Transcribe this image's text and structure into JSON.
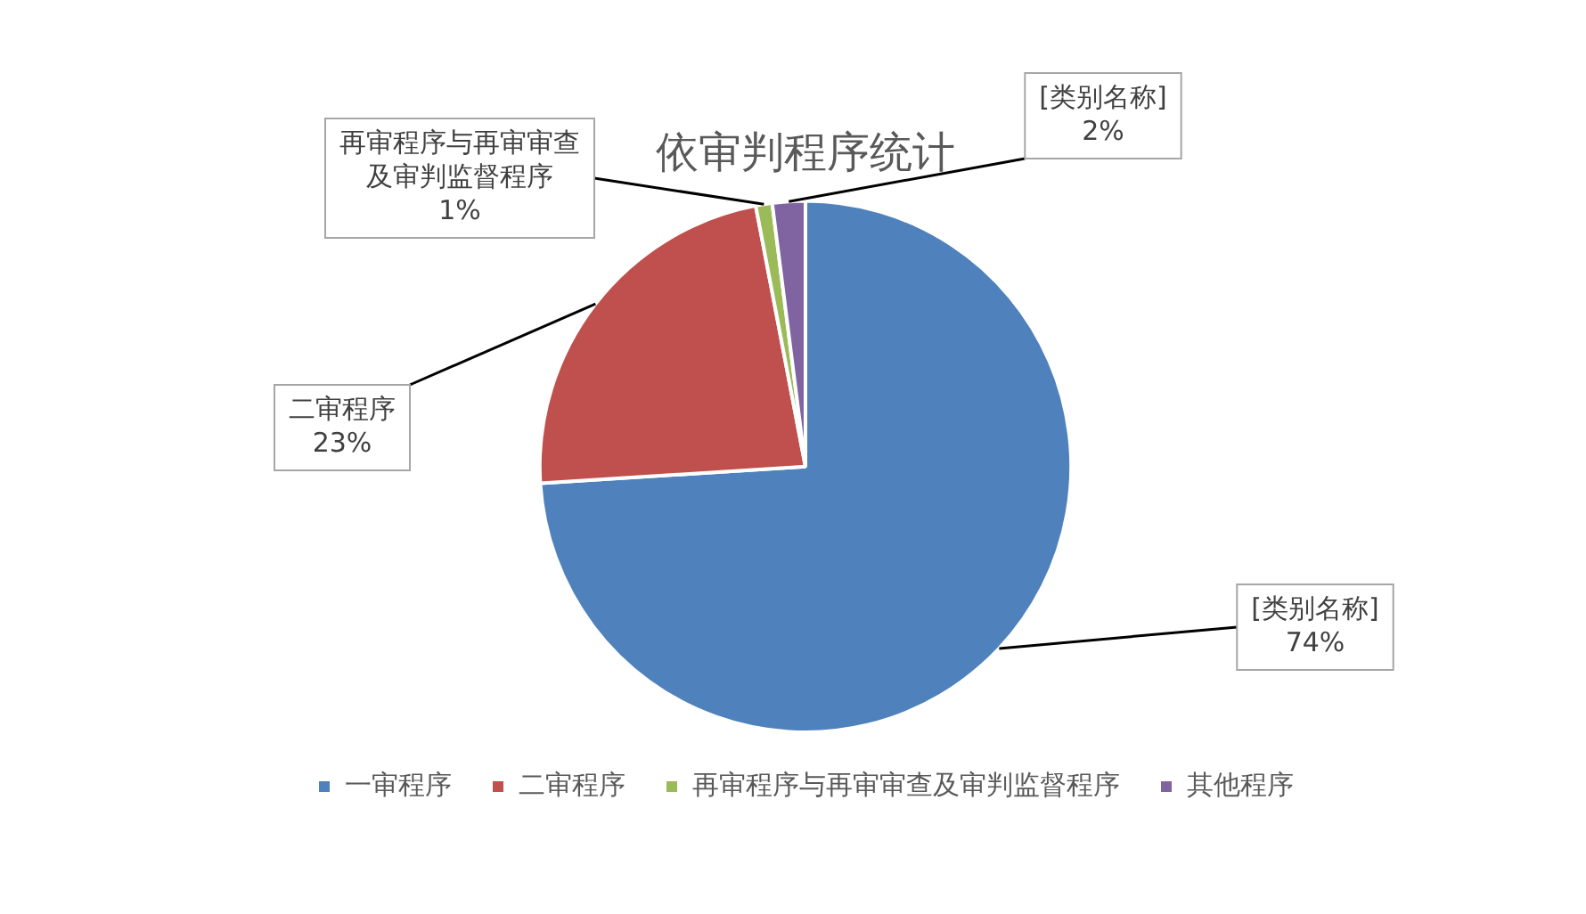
{
  "chart_data": {
    "type": "pie",
    "title": "依审判程序统计",
    "categories": [
      "一审程序",
      "二审程序",
      "再审程序与再审审查及审判监督程序",
      "其他程序"
    ],
    "values": [
      74,
      23,
      1,
      2
    ],
    "colors": [
      "#4f81bd",
      "#c0504d",
      "#9bbb59",
      "#8064a2"
    ],
    "value_labels": [
      "[类别名称]\n74%",
      "二审程序\n23%",
      "再审程序与再审审查及审判监督程序\n1%",
      "[类别名称]\n2%"
    ],
    "legend": "bottom"
  }
}
